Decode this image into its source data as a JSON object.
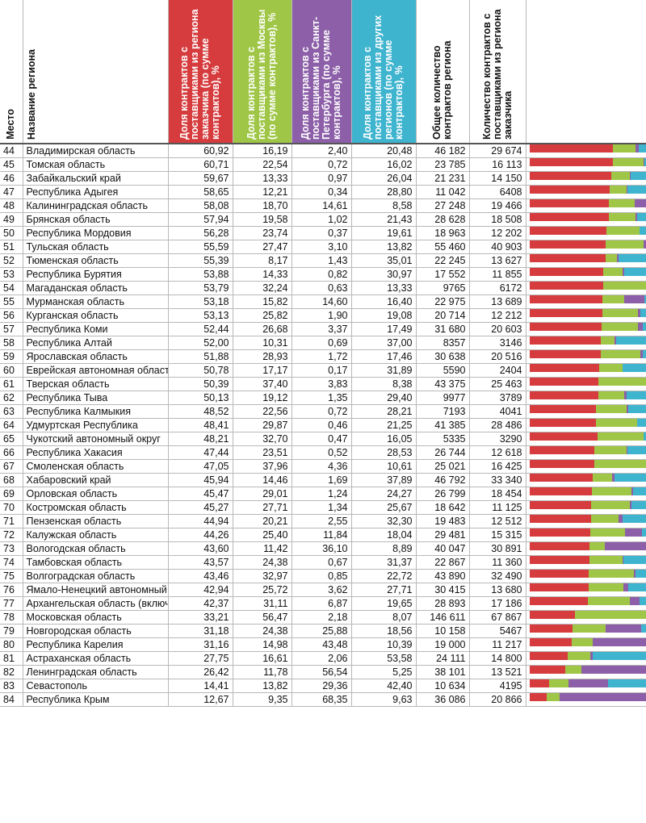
{
  "columns": {
    "place": "Место",
    "name": "Название региона",
    "share_own": "Доля контрактов с поставщиками из региона заказчика (по сумме контрак­тов), %",
    "share_moscow": "Доля контрактов с поставщиками из Москвы (по сумме контрактов), %",
    "share_spb": "Доля контрактов с поставщиками из Санкт-Петербурга (по сумме контрак­тов), %",
    "share_other": "Доля контрактов с поставщиками из других регионов (по сумме контрактов), %",
    "total_contracts": "Общее количество контрактов региона",
    "own_contracts": "Количество контрак­тов с поставщиками из региона заказчика"
  },
  "colors": {
    "own": "#d63c3e",
    "moscow": "#9fc646",
    "spb": "#8c5fa8",
    "other": "#3fb4cf"
  },
  "rows": [
    {
      "place": "44",
      "name": "Владимирская область",
      "own": "60,92",
      "moscow": "16,19",
      "spb": "2,40",
      "other": "20,48",
      "total": "46 182",
      "owncount": "29 674"
    },
    {
      "place": "45",
      "name": "Томская область",
      "own": "60,71",
      "moscow": "22,54",
      "spb": "0,72",
      "other": "16,02",
      "total": "23 785",
      "owncount": "16 113"
    },
    {
      "place": "46",
      "name": "Забайкальский край",
      "own": "59,67",
      "moscow": "13,33",
      "spb": "0,97",
      "other": "26,04",
      "total": "21 231",
      "owncount": "14 150"
    },
    {
      "place": "47",
      "name": "Республика Адыгея",
      "own": "58,65",
      "moscow": "12,21",
      "spb": "0,34",
      "other": "28,80",
      "total": "11 042",
      "owncount": "6408"
    },
    {
      "place": "48",
      "name": "Калининградская область",
      "own": "58,08",
      "moscow": "18,70",
      "spb": "14,61",
      "other": "8,58",
      "total": "27 248",
      "owncount": "19 466"
    },
    {
      "place": "49",
      "name": "Брянская область",
      "own": "57,94",
      "moscow": "19,58",
      "spb": "1,02",
      "other": "21,43",
      "total": "28 628",
      "owncount": "18 508"
    },
    {
      "place": "50",
      "name": "Республика Мордовия",
      "own": "56,28",
      "moscow": "23,74",
      "spb": "0,37",
      "other": "19,61",
      "total": "18 963",
      "owncount": "12 202"
    },
    {
      "place": "51",
      "name": "Тульская область",
      "own": "55,59",
      "moscow": "27,47",
      "spb": "3,10",
      "other": "13,82",
      "total": "55 460",
      "owncount": "40 903"
    },
    {
      "place": "52",
      "name": "Тюменская область",
      "own": "55,39",
      "moscow": "8,17",
      "spb": "1,43",
      "other": "35,01",
      "total": "22 245",
      "owncount": "13 627"
    },
    {
      "place": "53",
      "name": "Республика Бурятия",
      "own": "53,88",
      "moscow": "14,33",
      "spb": "0,82",
      "other": "30,97",
      "total": "17 552",
      "owncount": "11 855"
    },
    {
      "place": "54",
      "name": "Магаданская область",
      "own": "53,79",
      "moscow": "32,24",
      "spb": "0,63",
      "other": "13,33",
      "total": "9765",
      "owncount": "6172"
    },
    {
      "place": "55",
      "name": "Мурманская область",
      "own": "53,18",
      "moscow": "15,82",
      "spb": "14,60",
      "other": "16,40",
      "total": "22 975",
      "owncount": "13 689"
    },
    {
      "place": "56",
      "name": "Курганская область",
      "own": "53,13",
      "moscow": "25,82",
      "spb": "1,90",
      "other": "19,08",
      "total": "20 714",
      "owncount": "12 212"
    },
    {
      "place": "57",
      "name": "Республика Коми",
      "own": "52,44",
      "moscow": "26,68",
      "spb": "3,37",
      "other": "17,49",
      "total": "31 680",
      "owncount": "20 603"
    },
    {
      "place": "58",
      "name": "Республика Алтай",
      "own": "52,00",
      "moscow": "10,31",
      "spb": "0,69",
      "other": "37,00",
      "total": "8357",
      "owncount": "3146"
    },
    {
      "place": "59",
      "name": "Ярославская область",
      "own": "51,88",
      "moscow": "28,93",
      "spb": "1,72",
      "other": "17,46",
      "total": "30 638",
      "owncount": "20 516"
    },
    {
      "place": "60",
      "name": "Еврейская автономная область",
      "own": "50,78",
      "moscow": "17,17",
      "spb": "0,17",
      "other": "31,89",
      "total": "5590",
      "owncount": "2404"
    },
    {
      "place": "61",
      "name": "Тверская область",
      "own": "50,39",
      "moscow": "37,40",
      "spb": "3,83",
      "other": "8,38",
      "total": "43 375",
      "owncount": "25 463"
    },
    {
      "place": "62",
      "name": "Республика Тыва",
      "own": "50,13",
      "moscow": "19,12",
      "spb": "1,35",
      "other": "29,40",
      "total": "9977",
      "owncount": "3789"
    },
    {
      "place": "63",
      "name": "Республика Калмыкия",
      "own": "48,52",
      "moscow": "22,56",
      "spb": "0,72",
      "other": "28,21",
      "total": "7193",
      "owncount": "4041"
    },
    {
      "place": "64",
      "name": "Удмуртская Республика",
      "own": "48,41",
      "moscow": "29,87",
      "spb": "0,46",
      "other": "21,25",
      "total": "41 385",
      "owncount": "28 486"
    },
    {
      "place": "65",
      "name": "Чукотский автономный округ",
      "own": "48,21",
      "moscow": "32,70",
      "spb": "0,47",
      "other": "16,05",
      "total": "5335",
      "owncount": "3290"
    },
    {
      "place": "66",
      "name": "Республика Хакасия",
      "own": "47,44",
      "moscow": "23,51",
      "spb": "0,52",
      "other": "28,53",
      "total": "26 744",
      "owncount": "12 618"
    },
    {
      "place": "67",
      "name": "Смоленская область",
      "own": "47,05",
      "moscow": "37,96",
      "spb": "4,36",
      "other": "10,61",
      "total": "25 021",
      "owncount": "16 425"
    },
    {
      "place": "68",
      "name": "Хабаровский край",
      "own": "45,94",
      "moscow": "14,46",
      "spb": "1,69",
      "other": "37,89",
      "total": "46 792",
      "owncount": "33 340"
    },
    {
      "place": "69",
      "name": "Орловская область",
      "own": "45,47",
      "moscow": "29,01",
      "spb": "1,24",
      "other": "24,27",
      "total": "26 799",
      "owncount": "18 454"
    },
    {
      "place": "70",
      "name": "Костромская область",
      "own": "45,27",
      "moscow": "27,71",
      "spb": "1,34",
      "other": "25,67",
      "total": "18 642",
      "owncount": "11 125"
    },
    {
      "place": "71",
      "name": "Пензенская область",
      "own": "44,94",
      "moscow": "20,21",
      "spb": "2,55",
      "other": "32,30",
      "total": "19 483",
      "owncount": "12 512"
    },
    {
      "place": "72",
      "name": "Калужская область",
      "own": "44,26",
      "moscow": "25,40",
      "spb": "11,84",
      "other": "18,04",
      "total": "29 481",
      "owncount": "15 315"
    },
    {
      "place": "73",
      "name": "Вологодская область",
      "own": "43,60",
      "moscow": "11,42",
      "spb": "36,10",
      "other": "8,89",
      "total": "40 047",
      "owncount": "30 891"
    },
    {
      "place": "74",
      "name": "Тамбовская область",
      "own": "43,57",
      "moscow": "24,38",
      "spb": "0,67",
      "other": "31,37",
      "total": "22 867",
      "owncount": "11 360"
    },
    {
      "place": "75",
      "name": "Волгоградская область",
      "own": "43,46",
      "moscow": "32,97",
      "spb": "0,85",
      "other": "22,72",
      "total": "43 890",
      "owncount": "32 490"
    },
    {
      "place": "76",
      "name": "Ямало-Ненецкий автоном­ный округ",
      "own": "42,94",
      "moscow": "25,72",
      "spb": "3,62",
      "other": "27,71",
      "total": "30 415",
      "owncount": "13 680"
    },
    {
      "place": "77",
      "name": "Архангельская область (включая Ненецкий АО)",
      "own": "42,37",
      "moscow": "31,11",
      "spb": "6,87",
      "other": "19,65",
      "total": "28 893",
      "owncount": "17 186"
    },
    {
      "place": "78",
      "name": "Московская область",
      "own": "33,21",
      "moscow": "56,47",
      "spb": "2,18",
      "other": "8,07",
      "total": "146 611",
      "owncount": "67 867"
    },
    {
      "place": "79",
      "name": "Новгородская область",
      "own": "31,18",
      "moscow": "24,38",
      "spb": "25,88",
      "other": "18,56",
      "total": "10 158",
      "owncount": "5467"
    },
    {
      "place": "80",
      "name": "Республика Карелия",
      "own": "31,16",
      "moscow": "14,98",
      "spb": "43,48",
      "other": "10,39",
      "total": "19 000",
      "owncount": "11 217"
    },
    {
      "place": "81",
      "name": "Астраханская область",
      "own": "27,75",
      "moscow": "16,61",
      "spb": "2,06",
      "other": "53,58",
      "total": "24 111",
      "owncount": "14 800"
    },
    {
      "place": "82",
      "name": "Ленинградская область",
      "own": "26,42",
      "moscow": "11,78",
      "spb": "56,54",
      "other": "5,25",
      "total": "38 101",
      "owncount": "13 521"
    },
    {
      "place": "83",
      "name": "Севастополь",
      "own": "14,41",
      "moscow": "13,82",
      "spb": "29,36",
      "other": "42,40",
      "total": "10 634",
      "owncount": "4195"
    },
    {
      "place": "84",
      "name": "Республика Крым",
      "own": "12,67",
      "moscow": "9,35",
      "spb": "68,35",
      "other": "9,63",
      "total": "36 086",
      "owncount": "20 866"
    }
  ]
}
